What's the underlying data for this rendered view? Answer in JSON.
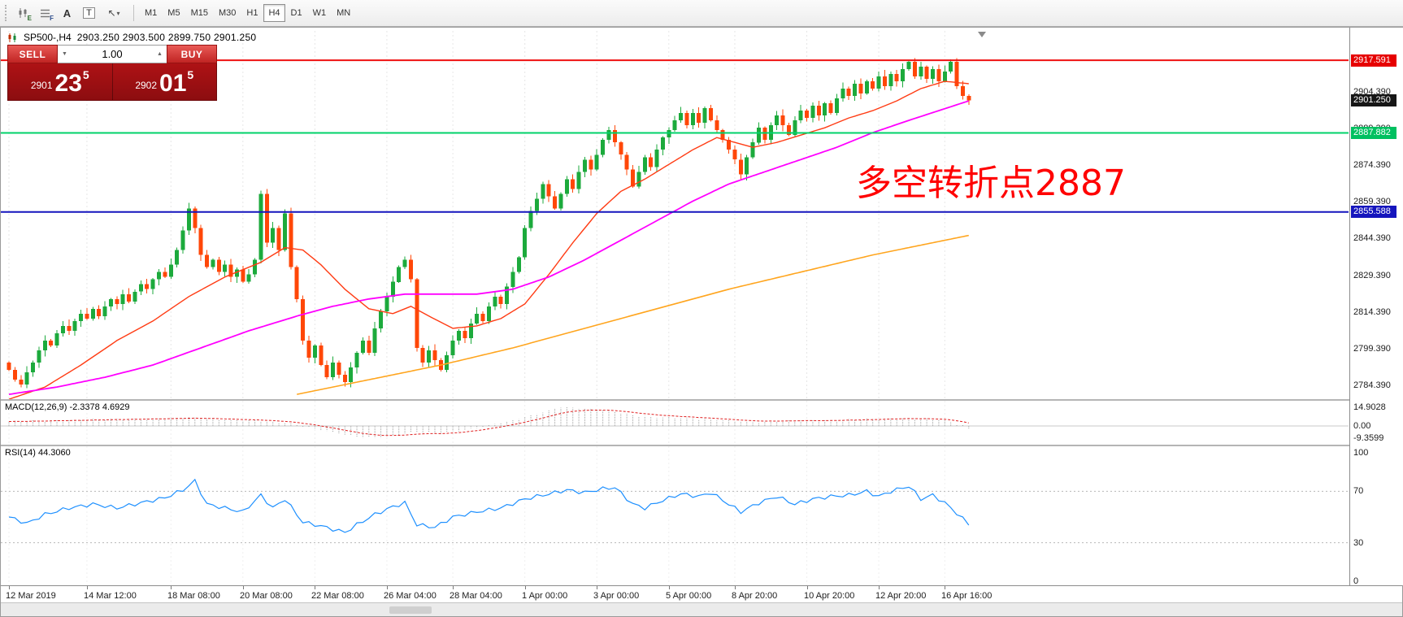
{
  "toolbar": {
    "icon_buttons": [
      {
        "id": "experts",
        "letter": "E"
      },
      {
        "id": "objects",
        "letter": "F"
      }
    ],
    "text_tool_a": "A",
    "text_tool_t": "T",
    "timeframes": [
      "M1",
      "M5",
      "M15",
      "M30",
      "H1",
      "H4",
      "D1",
      "W1",
      "MN"
    ],
    "active_timeframe": "H4"
  },
  "chart_header": {
    "symbol_period": "SP500-,H4",
    "ohlc": "2903.250 2903.500 2899.750 2901.250"
  },
  "trade_panel": {
    "sell_label": "SELL",
    "buy_label": "BUY",
    "volume": "1.00",
    "sell_price": {
      "prefix": "2901",
      "big": "23",
      "sup": "5"
    },
    "buy_price": {
      "prefix": "2902",
      "big": "01",
      "sup": "5"
    }
  },
  "annotation": {
    "text": "多空转折点2887",
    "color": "#ff0000"
  },
  "levels": [
    {
      "name": "resistance-line",
      "price": 2917.591,
      "label": "2917.591",
      "line_color": "#ef1010",
      "badge_color": "#e60000",
      "width": 2
    },
    {
      "name": "bid-price",
      "price": 2901.25,
      "label": "2901.250",
      "line_color": null,
      "badge_color": "#161616",
      "width": 0
    },
    {
      "name": "pivot-line",
      "price": 2887.882,
      "label": "2887.882",
      "line_color": "#00d26a",
      "badge_color": "#00c060",
      "width": 2
    },
    {
      "name": "support-line",
      "price": 2855.588,
      "label": "2855.588",
      "line_color": "#1515bd",
      "badge_color": "#1515bd",
      "width": 2
    }
  ],
  "price_scale": {
    "ticks": [
      2904.39,
      2889.39,
      2874.39,
      2859.39,
      2844.39,
      2829.39,
      2814.39,
      2799.39,
      2784.39
    ]
  },
  "chart_data": {
    "type": "candlestick",
    "symbol": "SP500-",
    "timeframe": "H4",
    "ylim": [
      2779,
      2930
    ],
    "bull_color": "#1caa3c",
    "bear_color": "#ff4708",
    "closes": [
      2791,
      2787,
      2785,
      2790,
      2794,
      2799,
      2803,
      2801,
      2806,
      2809,
      2807,
      2811,
      2814,
      2812,
      2816,
      2813,
      2817,
      2820,
      2818,
      2822,
      2819,
      2823,
      2826,
      2824,
      2828,
      2831,
      2829,
      2834,
      2840,
      2848,
      2857,
      2849,
      2838,
      2833,
      2836,
      2831,
      2834,
      2829,
      2832,
      2827,
      2830,
      2836,
      2863,
      2843,
      2849,
      2840,
      2855,
      2833,
      2820,
      2803,
      2796,
      2801,
      2793,
      2788,
      2794,
      2789,
      2786,
      2792,
      2798,
      2803,
      2798,
      2808,
      2815,
      2821,
      2827,
      2833,
      2836,
      2828,
      2800,
      2794,
      2799,
      2795,
      2791,
      2797,
      2803,
      2807,
      2804,
      2810,
      2814,
      2811,
      2817,
      2821,
      2818,
      2825,
      2831,
      2837,
      2849,
      2856,
      2861,
      2867,
      2862,
      2857,
      2863,
      2869,
      2865,
      2872,
      2877,
      2873,
      2879,
      2885,
      2889,
      2884,
      2879,
      2873,
      2866,
      2872,
      2878,
      2874,
      2881,
      2886,
      2889,
      2893,
      2896,
      2891,
      2896,
      2892,
      2898,
      2893,
      2889,
      2885,
      2881,
      2877,
      2871,
      2878,
      2884,
      2890,
      2885,
      2891,
      2895,
      2891,
      2887,
      2893,
      2897,
      2894,
      2899,
      2895,
      2900,
      2896,
      2902,
      2906,
      2903,
      2908,
      2904,
      2909,
      2906,
      2911,
      2907,
      2912,
      2909,
      2914,
      2917,
      2911,
      2915,
      2910,
      2914,
      2909,
      2913,
      2917,
      2907,
      2903,
      2901.25
    ],
    "moving_averages": [
      {
        "name": "fast",
        "color": "#ff3c14",
        "width": 1.4,
        "points": [
          [
            0,
            2779
          ],
          [
            6,
            2784
          ],
          [
            12,
            2793
          ],
          [
            18,
            2803
          ],
          [
            24,
            2811
          ],
          [
            30,
            2821
          ],
          [
            36,
            2829
          ],
          [
            42,
            2835
          ],
          [
            46,
            2841
          ],
          [
            49,
            2840
          ],
          [
            52,
            2834
          ],
          [
            56,
            2824
          ],
          [
            60,
            2816
          ],
          [
            64,
            2814
          ],
          [
            67,
            2817
          ],
          [
            70,
            2813
          ],
          [
            74,
            2808
          ],
          [
            78,
            2809
          ],
          [
            82,
            2812
          ],
          [
            86,
            2818
          ],
          [
            90,
            2830
          ],
          [
            94,
            2843
          ],
          [
            98,
            2855
          ],
          [
            102,
            2864
          ],
          [
            106,
            2869
          ],
          [
            110,
            2875
          ],
          [
            114,
            2881
          ],
          [
            118,
            2886
          ],
          [
            121,
            2884
          ],
          [
            124,
            2882
          ],
          [
            128,
            2884
          ],
          [
            132,
            2887
          ],
          [
            136,
            2890
          ],
          [
            140,
            2894
          ],
          [
            144,
            2897
          ],
          [
            148,
            2901
          ],
          [
            152,
            2906
          ],
          [
            156,
            2909
          ],
          [
            160,
            2908
          ]
        ]
      },
      {
        "name": "mid",
        "color": "#ff00ff",
        "width": 1.8,
        "points": [
          [
            0,
            2781
          ],
          [
            8,
            2784
          ],
          [
            16,
            2788
          ],
          [
            24,
            2793
          ],
          [
            32,
            2800
          ],
          [
            40,
            2807
          ],
          [
            48,
            2813
          ],
          [
            54,
            2817
          ],
          [
            60,
            2820
          ],
          [
            66,
            2822
          ],
          [
            72,
            2822
          ],
          [
            78,
            2822
          ],
          [
            84,
            2824
          ],
          [
            90,
            2829
          ],
          [
            96,
            2836
          ],
          [
            102,
            2844
          ],
          [
            108,
            2852
          ],
          [
            114,
            2860
          ],
          [
            120,
            2867
          ],
          [
            126,
            2872
          ],
          [
            132,
            2877
          ],
          [
            138,
            2882
          ],
          [
            144,
            2888
          ],
          [
            150,
            2893
          ],
          [
            155,
            2897
          ],
          [
            160,
            2901
          ]
        ]
      },
      {
        "name": "slow",
        "color": "#ffa51e",
        "width": 1.6,
        "points": [
          [
            48,
            2781
          ],
          [
            60,
            2787
          ],
          [
            72,
            2793
          ],
          [
            84,
            2800
          ],
          [
            96,
            2808
          ],
          [
            108,
            2816
          ],
          [
            120,
            2824
          ],
          [
            132,
            2831
          ],
          [
            144,
            2838
          ],
          [
            160,
            2846
          ]
        ]
      }
    ],
    "macd": {
      "label": "MACD(12,26,9) -2.3378 4.6929",
      "ylim": [
        -12,
        17.5
      ],
      "histogram_color": "#9f9f9f",
      "signal_color": "#e02020",
      "scale": [
        {
          "label": "14.9028",
          "value": 14.9028
        },
        {
          "label": "0.00",
          "value": 0
        },
        {
          "label": "-9.3599",
          "value": -9.3599
        }
      ],
      "main_points": [
        [
          0,
          3.5
        ],
        [
          8,
          4.5
        ],
        [
          16,
          5.2
        ],
        [
          24,
          5.8
        ],
        [
          30,
          6.5
        ],
        [
          36,
          5
        ],
        [
          42,
          4
        ],
        [
          46,
          2.5
        ],
        [
          50,
          -1
        ],
        [
          54,
          -5
        ],
        [
          58,
          -8.5
        ],
        [
          61,
          -9.3
        ],
        [
          64,
          -7.5
        ],
        [
          68,
          -5
        ],
        [
          72,
          -6
        ],
        [
          76,
          -3
        ],
        [
          80,
          0.5
        ],
        [
          84,
          4.5
        ],
        [
          88,
          9.5
        ],
        [
          92,
          14.9
        ],
        [
          96,
          13.5
        ],
        [
          100,
          12
        ],
        [
          104,
          8.5
        ],
        [
          108,
          7
        ],
        [
          112,
          6.5
        ],
        [
          116,
          5.5
        ],
        [
          120,
          4
        ],
        [
          124,
          3
        ],
        [
          128,
          4
        ],
        [
          132,
          4.5
        ],
        [
          136,
          4.2
        ],
        [
          140,
          5
        ],
        [
          144,
          5.5
        ],
        [
          148,
          6.2
        ],
        [
          152,
          5.8
        ],
        [
          155,
          5
        ],
        [
          157,
          3
        ],
        [
          159,
          0.5
        ],
        [
          160,
          -2.34
        ]
      ]
    },
    "rsi": {
      "label": "RSI(14) 44.3060",
      "ylim": [
        0,
        100
      ],
      "color": "#1e90ff",
      "level_lines": [
        70,
        30
      ],
      "scale": [
        {
          "label": "100",
          "value": 100
        },
        {
          "label": "70",
          "value": 70
        },
        {
          "label": "30",
          "value": 30
        },
        {
          "label": "0",
          "value": 0
        }
      ],
      "points": [
        [
          0,
          50
        ],
        [
          3,
          45
        ],
        [
          6,
          52
        ],
        [
          10,
          57
        ],
        [
          14,
          60
        ],
        [
          18,
          57
        ],
        [
          22,
          61
        ],
        [
          26,
          65
        ],
        [
          29,
          71
        ],
        [
          31,
          78
        ],
        [
          33,
          60
        ],
        [
          36,
          57
        ],
        [
          39,
          54
        ],
        [
          42,
          67
        ],
        [
          44,
          57
        ],
        [
          46,
          64
        ],
        [
          49,
          46
        ],
        [
          52,
          43
        ],
        [
          56,
          38
        ],
        [
          58,
          44
        ],
        [
          61,
          52
        ],
        [
          64,
          58
        ],
        [
          66,
          61
        ],
        [
          68,
          44
        ],
        [
          71,
          42
        ],
        [
          74,
          50
        ],
        [
          78,
          54
        ],
        [
          82,
          57
        ],
        [
          86,
          64
        ],
        [
          90,
          68
        ],
        [
          93,
          71
        ],
        [
          96,
          69
        ],
        [
          99,
          72
        ],
        [
          101,
          73
        ],
        [
          104,
          60
        ],
        [
          106,
          57
        ],
        [
          109,
          63
        ],
        [
          112,
          68
        ],
        [
          115,
          66
        ],
        [
          117,
          69
        ],
        [
          120,
          60
        ],
        [
          122,
          54
        ],
        [
          125,
          61
        ],
        [
          128,
          66
        ],
        [
          131,
          60
        ],
        [
          134,
          64
        ],
        [
          137,
          66
        ],
        [
          140,
          67
        ],
        [
          143,
          70
        ],
        [
          145,
          66
        ],
        [
          147,
          70
        ],
        [
          150,
          74
        ],
        [
          152,
          64
        ],
        [
          154,
          67
        ],
        [
          156,
          61
        ],
        [
          158,
          53
        ],
        [
          160,
          44.3
        ]
      ]
    },
    "x_labels": [
      {
        "text": "12 Mar 2019",
        "bar": 0
      },
      {
        "text": "14 Mar 12:00",
        "bar": 13
      },
      {
        "text": "18 Mar 08:00",
        "bar": 27
      },
      {
        "text": "20 Mar 08:00",
        "bar": 39
      },
      {
        "text": "22 Mar 08:00",
        "bar": 51
      },
      {
        "text": "26 Mar 04:00",
        "bar": 63
      },
      {
        "text": "28 Mar 04:00",
        "bar": 74
      },
      {
        "text": "1 Apr 00:00",
        "bar": 86
      },
      {
        "text": "3 Apr 00:00",
        "bar": 98
      },
      {
        "text": "5 Apr 00:00",
        "bar": 110
      },
      {
        "text": "8 Apr 20:00",
        "bar": 121
      },
      {
        "text": "10 Apr 20:00",
        "bar": 133
      },
      {
        "text": "12 Apr 20:00",
        "bar": 145
      },
      {
        "text": "16 Apr 16:00",
        "bar": 156
      }
    ]
  }
}
